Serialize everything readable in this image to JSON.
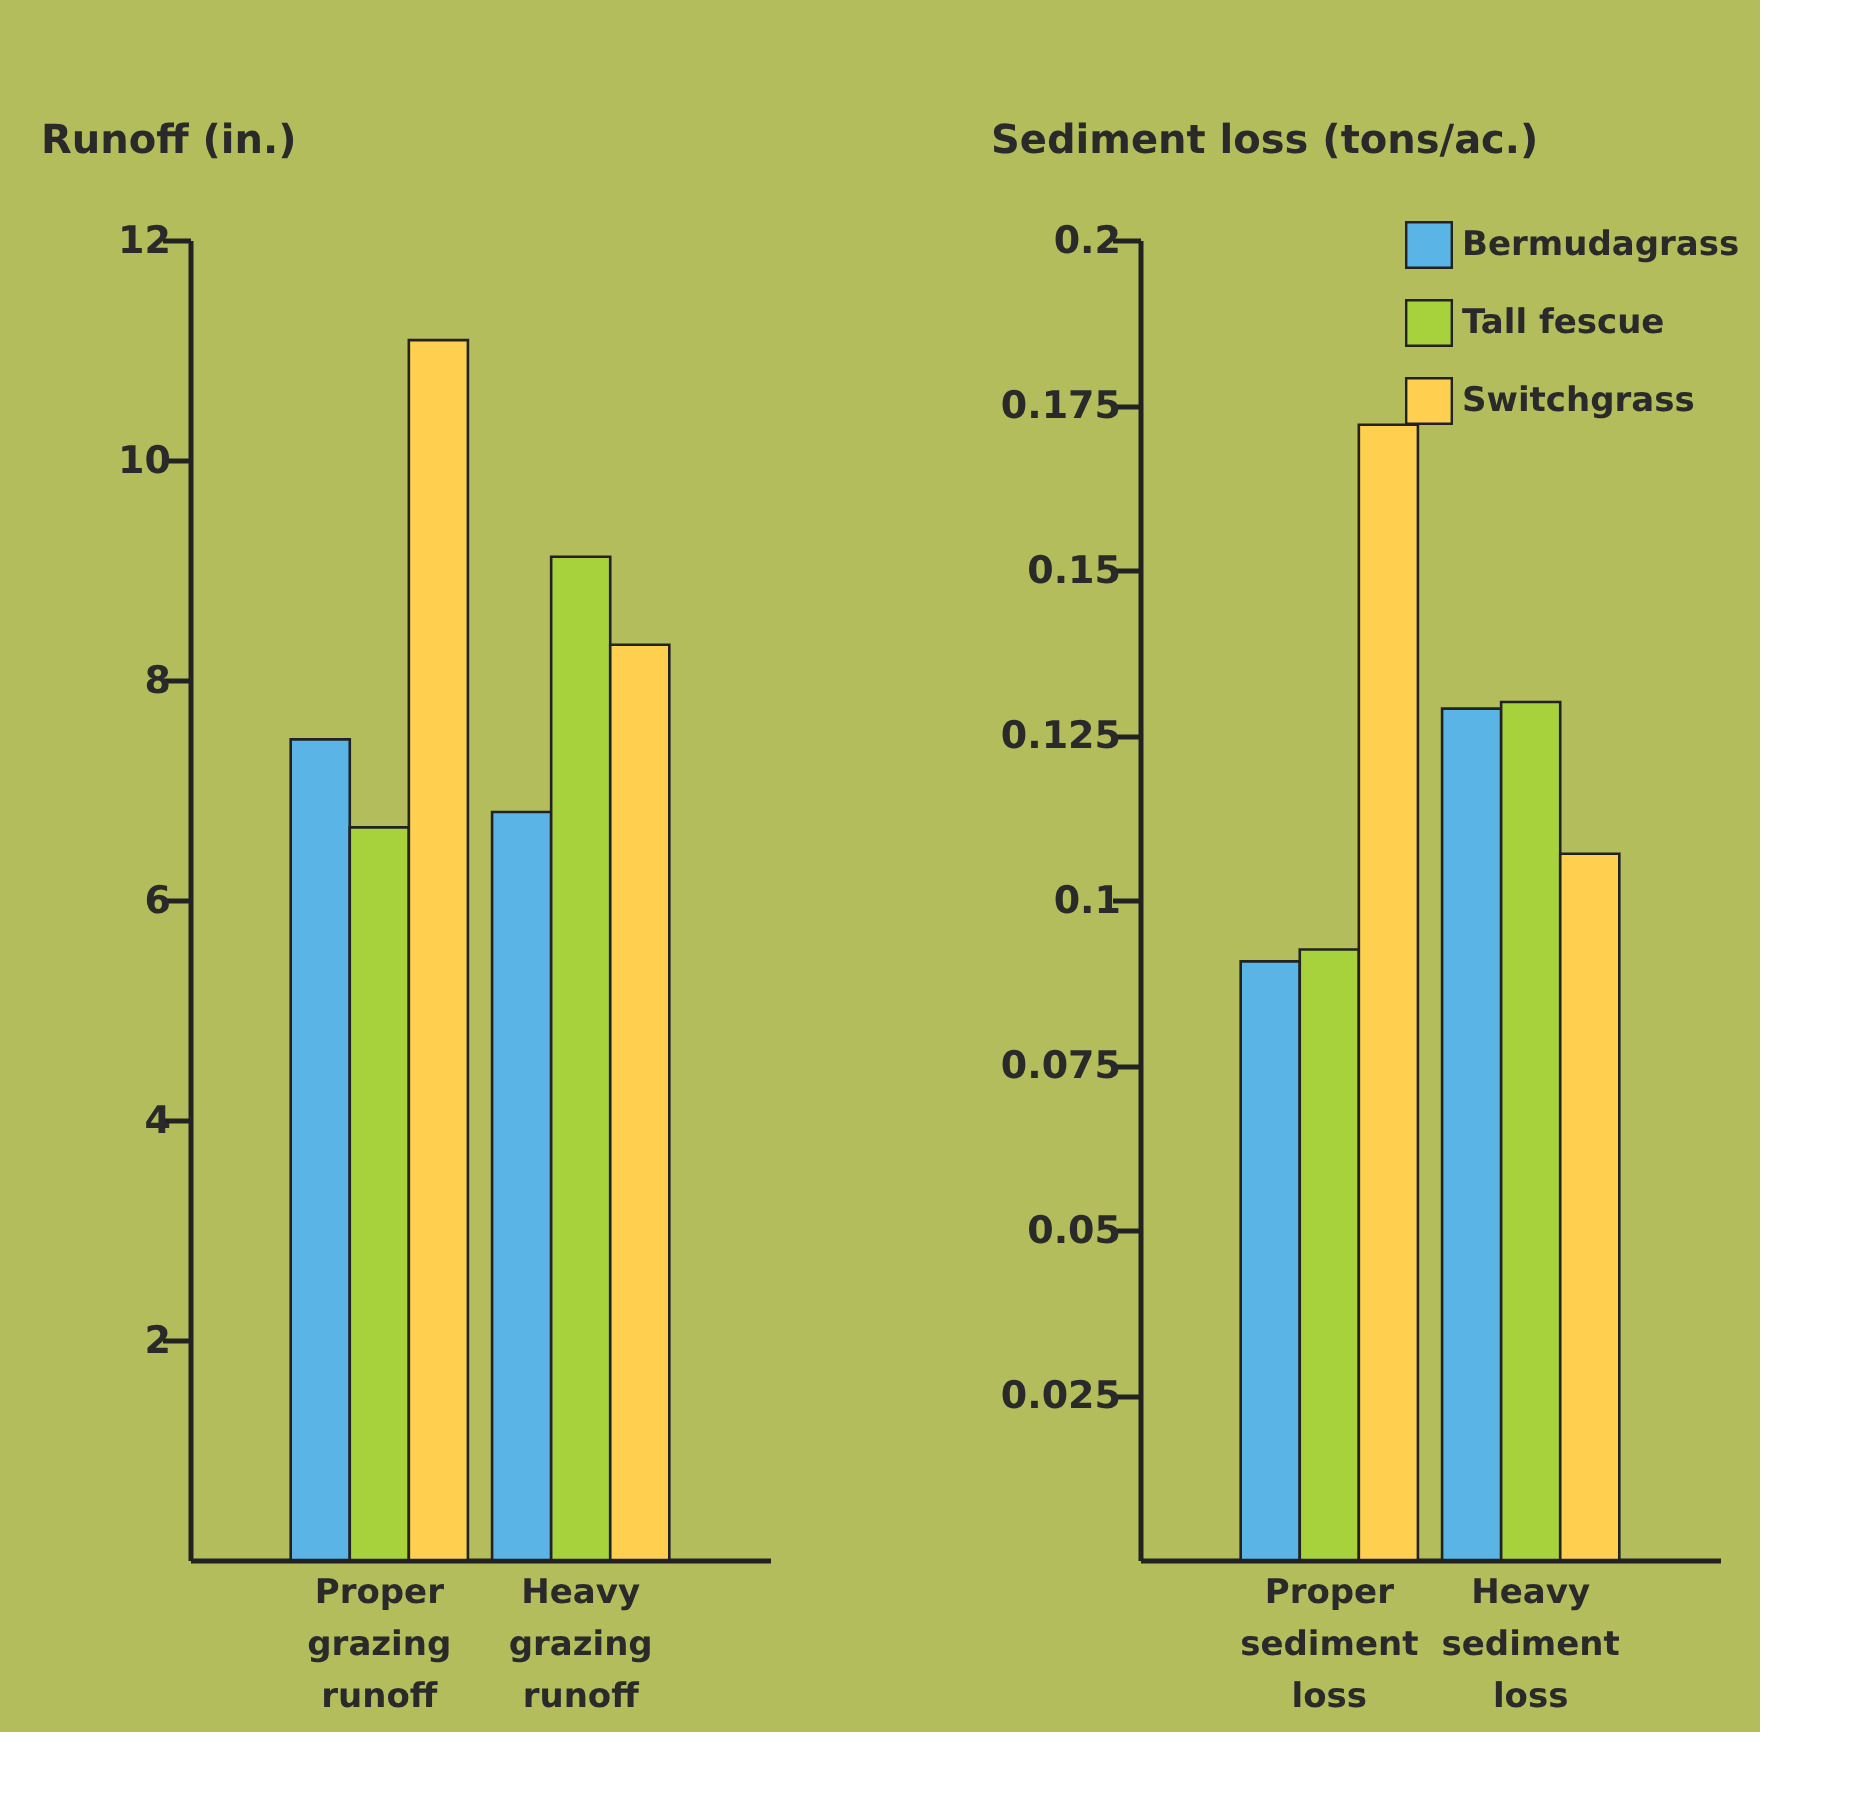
{
  "chart_data": [
    {
      "type": "bar",
      "ylabel": "Runoff (in.)",
      "categories": [
        "Proper grazing runoff",
        "Heavy grazing runoff"
      ],
      "series": [
        {
          "color": "#5ab4e6",
          "values": [
            7.46,
            6.8
          ]
        },
        {
          "color": "#a8d23c",
          "values": [
            6.66,
            9.12
          ]
        },
        {
          "color": "#ffd050",
          "values": [
            11.09,
            8.32
          ]
        }
      ],
      "ylim": [
        0,
        12
      ],
      "yticks": [
        2,
        4,
        6,
        8,
        10,
        12
      ],
      "grid": false,
      "legend": false
    },
    {
      "type": "bar",
      "ylabel": "Sediment loss (tons/ac.)",
      "categories": [
        "Proper sediment loss",
        "Heavy sediment loss"
      ],
      "series": [
        {
          "name": "Bermudagrass",
          "color": "#5ab4e6",
          "values": [
            0.0907,
            0.129
          ]
        },
        {
          "name": "Tall fescue",
          "color": "#a8d23c",
          "values": [
            0.0925,
            0.13
          ]
        },
        {
          "name": "Switchgrass",
          "color": "#ffd050",
          "values": [
            0.172,
            0.107
          ]
        }
      ],
      "ylim": [
        0,
        0.2
      ],
      "yticks": [
        0.025,
        0.05,
        0.075,
        0.1,
        0.125,
        0.15,
        0.175,
        0.2
      ],
      "grid": false,
      "legend": "top right"
    }
  ]
}
